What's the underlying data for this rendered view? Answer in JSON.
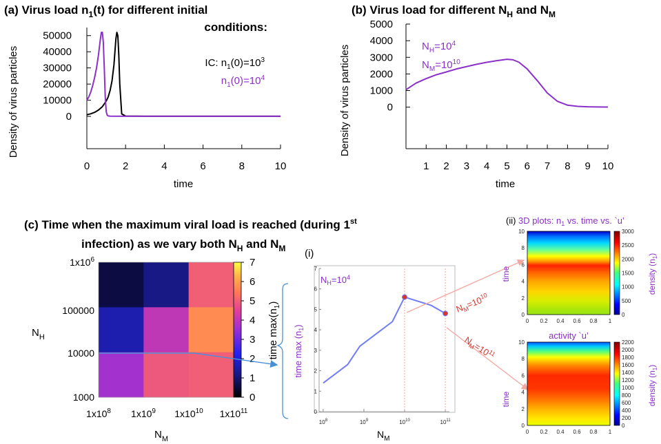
{
  "colors": {
    "purple": "#8b2fc9",
    "black": "#000000",
    "blue_line": "#6f7cf2",
    "red_marker": "#d9342b",
    "arrow_blue": "#4a90d9",
    "arrow_red": "#f4a6a0"
  },
  "panels": {
    "a": {
      "title_main": "(a)  Virus load n",
      "title_sub": "1",
      "title_rest": "(t) for different initial",
      "title_line2": "conditions:",
      "ylabel": "Density of virus particles",
      "xlabel": "time",
      "legend_black_a": "IC: n",
      "legend_black_sub": "1",
      "legend_black_b": "(0)=10",
      "legend_black_sup": "3",
      "legend_purple_a": "n",
      "legend_purple_sub": "1",
      "legend_purple_b": "(0)=10",
      "legend_purple_sup": "4"
    },
    "b": {
      "title_a": "(b)  Virus load for different N",
      "title_h": "H",
      "title_and": " and N",
      "title_m": "M",
      "ylabel": "Density of virus particles",
      "xlabel": "time",
      "ann1_a": "N",
      "ann1_sub": "H",
      "ann1_b": "=10",
      "ann1_sup": "4",
      "ann2_a": "N",
      "ann2_sub": "M",
      "ann2_b": "=10",
      "ann2_sup": "10"
    },
    "c": {
      "title_line1_a": "(c) Time when the maximum viral load is reached (during 1",
      "title_line1_sup": "st",
      "title_line2_a": "infection) as we vary both N",
      "title_line2_h": "H",
      "title_line2_and": " and N",
      "title_line2_m": "M",
      "ylabel_a": "N",
      "ylabel_sub": "H",
      "xlabel_a": "N",
      "xlabel_sub": "M",
      "colorbar_label_a": "time max(n",
      "colorbar_label_sub": "1",
      "colorbar_label_b": ")"
    },
    "i": {
      "label": "(i)",
      "ann_a": "N",
      "ann_sub": "H",
      "ann_b": "=10",
      "ann_sup": "4",
      "ylabel_a": "time max (n",
      "ylabel_sub": "1",
      "ylabel_b": ")",
      "xlabel_a": "N",
      "xlabel_sub": "M",
      "arrow1_a": "N",
      "arrow1_sub": "M",
      "arrow1_b": "=10",
      "arrow1_sup": "10",
      "arrow2_a": "N",
      "arrow2_sub": "M",
      "arrow2_b": "=10",
      "arrow2_sup": "11"
    },
    "ii": {
      "label": "(ii)",
      "title_a": " 3D plots: n",
      "title_sub": "1",
      "title_b": " vs. time vs. `u’",
      "ylabel": "time",
      "xlabel_top": "activity `u’",
      "cb_label_a": "density (n",
      "cb_label_sub": "1",
      "cb_label_b": ")"
    }
  },
  "chart_data": [
    {
      "panel": "a",
      "type": "line",
      "title": "Virus load n1(t) for different initial conditions:",
      "xlabel": "time",
      "ylabel": "Density of virus particles",
      "xlim": [
        0,
        10
      ],
      "ylim": [
        -20000,
        55000
      ],
      "xticks": [
        0,
        2,
        4,
        6,
        8,
        10
      ],
      "yticks": [
        0,
        10000,
        20000,
        30000,
        40000,
        50000
      ],
      "xtick_labels": [
        "0",
        "2",
        "4",
        "6",
        "8",
        "10"
      ],
      "ytick_labels": [
        "0",
        "10000",
        "20000",
        "30000",
        "40000",
        "50000"
      ],
      "series": [
        {
          "name": "IC: n1(0)=10^3",
          "color": "#000000",
          "x": [
            0,
            0.2,
            0.4,
            0.6,
            0.8,
            1.0,
            1.1,
            1.2,
            1.3,
            1.4,
            1.45,
            1.5,
            1.55,
            1.6,
            1.65,
            1.7,
            1.8,
            2.0,
            3,
            5,
            10
          ],
          "y": [
            1000,
            1600,
            2500,
            3900,
            6000,
            9500,
            12000,
            16000,
            22000,
            32000,
            40000,
            48000,
            52000,
            50000,
            38000,
            20000,
            1500,
            200,
            100,
            100,
            100
          ]
        },
        {
          "name": "IC: n1(0)=10^4",
          "color": "#8b2fc9",
          "x": [
            0,
            0.1,
            0.2,
            0.3,
            0.4,
            0.5,
            0.6,
            0.65,
            0.7,
            0.75,
            0.8,
            0.85,
            0.9,
            0.95,
            1.0,
            1.05,
            1.1,
            1.2,
            2,
            5,
            10
          ],
          "y": [
            10000,
            12000,
            15000,
            19000,
            24000,
            30000,
            38000,
            43000,
            48000,
            52000,
            52000,
            46000,
            30000,
            12000,
            3000,
            800,
            300,
            150,
            100,
            100,
            100
          ]
        }
      ]
    },
    {
      "panel": "b",
      "type": "line",
      "title": "Virus load for different NH and NM",
      "xlabel": "time",
      "ylabel": "Density of virus particles",
      "xlim": [
        0,
        10
      ],
      "ylim": [
        -2500,
        5000
      ],
      "xticks": [
        1,
        2,
        3,
        4,
        5,
        6,
        7,
        8,
        9,
        10
      ],
      "yticks": [
        0,
        1000,
        2000,
        3000,
        4000,
        5000
      ],
      "xtick_labels": [
        "1",
        "2",
        "3",
        "4",
        "5",
        "6",
        "7",
        "8",
        "9",
        "10"
      ],
      "ytick_labels": [
        "0",
        "1000",
        "2000",
        "3000",
        "4000",
        "5000"
      ],
      "series": [
        {
          "name": "NH=10^4, NM=10^10",
          "color": "#8b2fc9",
          "x": [
            0,
            0.5,
            1,
            1.5,
            2,
            2.5,
            3,
            3.5,
            4,
            4.5,
            5,
            5.3,
            5.6,
            6,
            6.5,
            7,
            7.5,
            8,
            8.5,
            9,
            9.5,
            10
          ],
          "y": [
            1050,
            1450,
            1720,
            1950,
            2120,
            2300,
            2440,
            2580,
            2700,
            2800,
            2880,
            2850,
            2700,
            2300,
            1600,
            850,
            350,
            120,
            50,
            20,
            10,
            5
          ]
        }
      ]
    },
    {
      "panel": "c",
      "type": "heatmap",
      "title": "Time when the maximum viral load is reached (during 1st infection) as we vary both NH and NM",
      "xlabel": "NM",
      "ylabel": "NH",
      "x_tick_labels": [
        "1x10^8",
        "1x10^9",
        "1x10^10",
        "1x10^11"
      ],
      "y_tick_labels": [
        "1000",
        "10000",
        "100000",
        "1x10^6"
      ],
      "x_tick_display": [
        "1x10",
        "1x10",
        "1x10",
        "1x10"
      ],
      "x_tick_exp": [
        "8",
        "9",
        "10",
        "11"
      ],
      "y_tick_display": [
        "1000",
        "10000",
        "100000",
        "1x10"
      ],
      "y_tick_exp": [
        "",
        "",
        "",
        "6"
      ],
      "colorbar_range": [
        0,
        7
      ],
      "colorbar_ticks": [
        "0",
        "1",
        "2",
        "3",
        "4",
        "5",
        "6",
        "7"
      ],
      "colorbar_label": "time max(n1)",
      "rows_top_to_bottom": [
        [
          0.6,
          1.2,
          5.0
        ],
        [
          1.6,
          4.0,
          5.7
        ],
        [
          3.6,
          4.9,
          5.0
        ]
      ]
    },
    {
      "panel": "i",
      "type": "line",
      "xlabel": "NM",
      "ylabel": "time max (n1)",
      "xscale": "log",
      "xlim_log10": [
        7.9,
        11.1
      ],
      "ylim": [
        0,
        7
      ],
      "x_tick_base": [
        "10",
        "10",
        "10",
        "10"
      ],
      "x_tick_exp": [
        "8",
        "9",
        "10",
        "11"
      ],
      "y_tick_labels": [
        "0",
        "1",
        "2",
        "3",
        "4",
        "5",
        "6",
        "7"
      ],
      "series": [
        {
          "name": "NH=10^4",
          "color": "#6f7cf2",
          "log10_x": [
            8,
            8.6,
            8.9,
            9.3,
            9.7,
            10,
            10.65,
            11
          ],
          "y": [
            1.4,
            2.3,
            3.2,
            3.8,
            4.4,
            5.6,
            5.2,
            4.8
          ]
        }
      ],
      "markers": [
        {
          "log10_x": 10,
          "y": 5.6
        },
        {
          "log10_x": 11,
          "y": 4.8
        }
      ]
    },
    {
      "panel": "ii-top",
      "type": "heatmap",
      "xlabel": "activity `u’",
      "ylabel": "time",
      "x_ticks": [
        "0",
        "0.2",
        "0.4",
        "0.6",
        "0.8",
        "1"
      ],
      "y_ticks": [
        "0",
        "2",
        "4",
        "6",
        "8",
        "10"
      ],
      "colorbar_ticks": [
        "0",
        "500",
        "1000",
        "1500",
        "2000",
        "2500",
        "3000"
      ],
      "colorbar_label": "density (n1)",
      "annotation": "NM=10^10"
    },
    {
      "panel": "ii-bottom",
      "type": "heatmap",
      "ylabel": "time",
      "x_ticks": [
        "0",
        "0.2",
        "0.4",
        "0.6",
        "0.8",
        "1"
      ],
      "y_ticks": [
        "0",
        "2",
        "4",
        "6",
        "8",
        "10"
      ],
      "colorbar_ticks": [
        "0",
        "200",
        "400",
        "600",
        "800",
        "1000",
        "1200",
        "1400",
        "1600",
        "1800",
        "2000",
        "2200"
      ],
      "colorbar_label": "density (n1)",
      "annotation": "NM=10^11"
    }
  ]
}
